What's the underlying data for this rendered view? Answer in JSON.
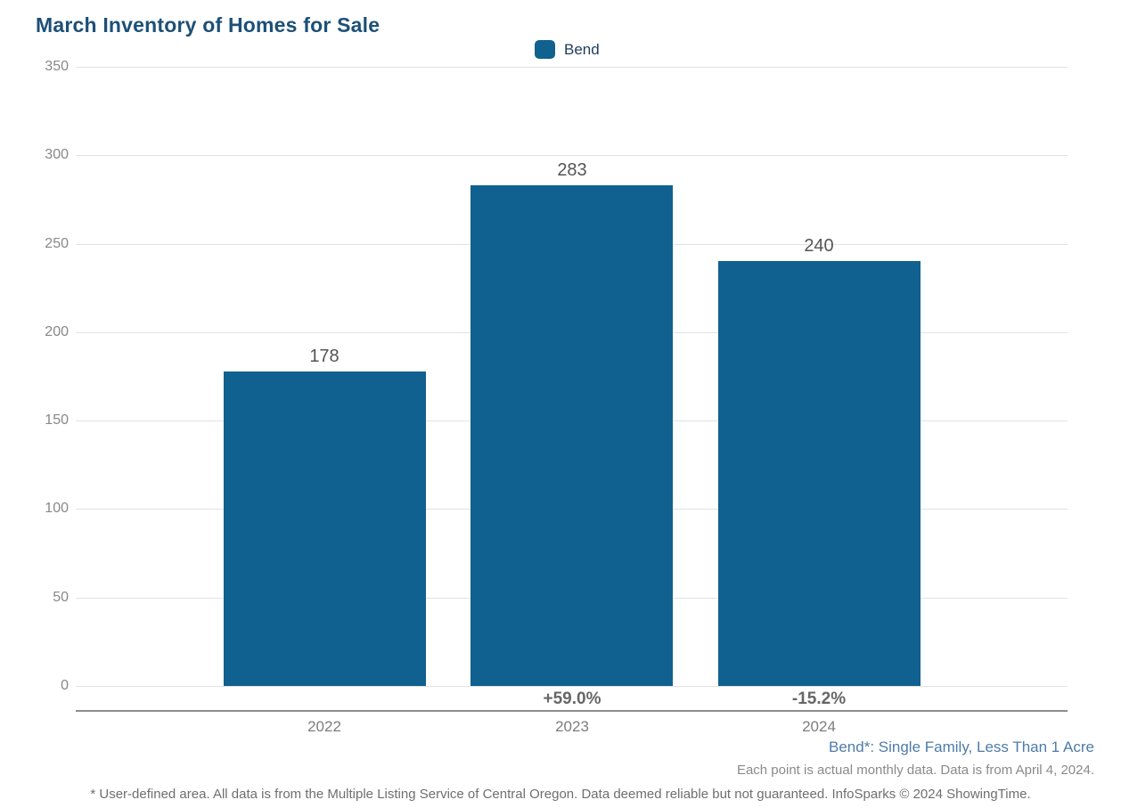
{
  "header": {
    "title": "March Inventory of Homes for Sale"
  },
  "legend": {
    "items": [
      {
        "label": "Bend",
        "color": "#10618f"
      }
    ]
  },
  "chart_data": {
    "type": "bar",
    "title": "March Inventory of Homes for Sale",
    "categories": [
      "2022",
      "2023",
      "2024"
    ],
    "series": [
      {
        "name": "Bend",
        "color": "#10618f",
        "values": [
          178,
          283,
          240
        ]
      }
    ],
    "data_labels": [
      "178",
      "283",
      "240"
    ],
    "change_labels": [
      "",
      "+59.0%",
      "-15.2%"
    ],
    "xlabel": "",
    "ylabel": "",
    "ylim": [
      0,
      350
    ],
    "yticks": [
      0,
      50,
      100,
      150,
      200,
      250,
      300,
      350
    ],
    "grid": "horizontal",
    "legend_position": "top-center"
  },
  "notes": {
    "series_definition": "Bend*: Single Family, Less Than 1 Acre",
    "data_note": "Each point is actual monthly data. Data is from April 4, 2024."
  },
  "footer": {
    "disclaimer": "* User-defined area. All data is from the Multiple Listing Service of Central Oregon. Data deemed reliable but not guaranteed. InfoSparks © 2024 ShowingTime."
  },
  "colors": {
    "bar": "#10618f",
    "title": "#1c5078",
    "series_note": "#4d7ca8",
    "axis_text": "#888888"
  }
}
